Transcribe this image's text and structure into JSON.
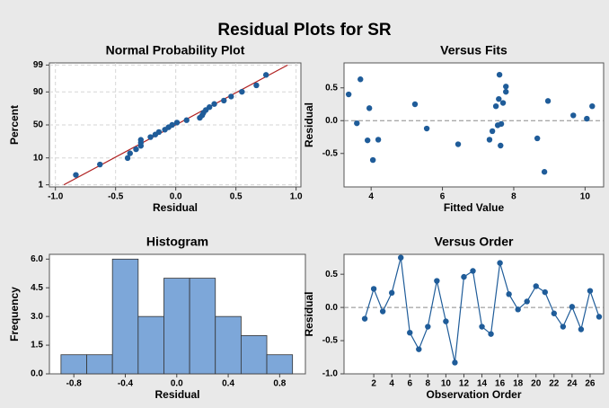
{
  "title": "Residual Plots for SR",
  "chart_data": [
    {
      "type": "probability",
      "title": "Normal Probability Plot",
      "xlabel": "Residual",
      "ylabel": "Percent",
      "x": [
        -0.83,
        -0.63,
        -0.4,
        -0.38,
        -0.33,
        -0.29,
        -0.29,
        -0.29,
        -0.21,
        -0.17,
        -0.14,
        -0.09,
        -0.06,
        -0.03,
        0.01,
        0.09,
        0.2,
        0.22,
        0.23,
        0.25,
        0.28,
        0.32,
        0.4,
        0.46,
        0.55,
        0.67,
        0.75
      ],
      "values": [
        2.6,
        6.2,
        9.9,
        13.5,
        17.2,
        20.8,
        24.5,
        28.1,
        31.8,
        35.4,
        39.1,
        42.7,
        46.4,
        50.0,
        53.6,
        57.3,
        60.9,
        64.6,
        68.2,
        71.9,
        75.5,
        79.2,
        82.8,
        86.5,
        90.1,
        93.8,
        97.4
      ],
      "color": "#1f5c99",
      "fit_line": {
        "x": [
          -0.93,
          0.93
        ],
        "values": [
          1,
          99
        ],
        "color": "#b02020"
      },
      "yscale": "probit",
      "grid": true,
      "xlim": [
        -1.05,
        1.04
      ],
      "xticks": [
        {
          "value": -1.0,
          "label": "-1.0"
        },
        -0.5,
        {
          "value": 0.0,
          "label": "0.0"
        },
        0.5,
        {
          "value": 1.0,
          "label": "1.0"
        }
      ],
      "ylim": [
        0.8,
        99.2
      ],
      "yticks": [
        1,
        10,
        50,
        90,
        99
      ]
    },
    {
      "type": "scatter",
      "title": "Versus Fits",
      "xlabel": "Fitted Value",
      "ylabel": "Residual",
      "x": [
        3.37,
        3.6,
        3.7,
        3.9,
        3.95,
        4.05,
        4.2,
        5.23,
        5.56,
        6.44,
        7.32,
        7.4,
        7.5,
        7.55,
        7.58,
        7.6,
        7.63,
        7.65,
        7.7,
        7.78,
        7.78,
        8.66,
        8.86,
        8.96,
        9.67,
        10.05,
        10.2
      ],
      "values": [
        0.4,
        -0.04,
        0.63,
        -0.3,
        0.19,
        -0.6,
        -0.29,
        0.25,
        -0.12,
        -0.36,
        -0.29,
        -0.16,
        0.22,
        -0.07,
        0.33,
        0.7,
        -0.38,
        -0.05,
        0.27,
        0.44,
        0.52,
        -0.27,
        -0.78,
        0.3,
        0.08,
        0.03,
        0.22
      ],
      "color": "#1f5c99",
      "hline": 0,
      "xlim": [
        3.24,
        10.52
      ],
      "xticks": [
        4,
        6,
        8,
        10
      ],
      "ylim": [
        -1.01,
        0.88
      ],
      "yticks": [
        -0.5,
        {
          "value": 0.0,
          "label": "0.0"
        },
        0.5
      ]
    },
    {
      "type": "histogram",
      "title": "Histogram",
      "xlabel": "Residual",
      "ylabel": "Frequency",
      "bins": [
        -0.9,
        -0.7,
        -0.5,
        -0.3,
        -0.1,
        0.1,
        0.3,
        0.5,
        0.7,
        0.9
      ],
      "values": [
        1,
        1,
        6,
        3,
        5,
        5,
        3,
        2,
        1
      ],
      "color": "#7da7d9",
      "xlim": [
        -0.99,
        1.0
      ],
      "xticks": [
        -0.8,
        -0.4,
        {
          "value": 0.0,
          "label": "0.0"
        },
        0.4,
        0.8
      ],
      "ylim": [
        0,
        6.25
      ],
      "yticks": [
        {
          "value": 0.0,
          "label": "0.0"
        },
        1.5,
        {
          "value": 3.0,
          "label": "3.0"
        },
        4.5,
        {
          "value": 6.0,
          "label": "6.0"
        }
      ]
    },
    {
      "type": "line",
      "title": "Versus Order",
      "xlabel": "Observation Order",
      "ylabel": "Residual",
      "x": [
        1,
        2,
        3,
        4,
        5,
        6,
        7,
        8,
        9,
        10,
        11,
        12,
        13,
        14,
        15,
        16,
        17,
        18,
        19,
        20,
        21,
        22,
        23,
        24,
        25,
        26,
        27
      ],
      "values": [
        -0.17,
        0.28,
        -0.06,
        0.22,
        0.75,
        -0.38,
        -0.63,
        -0.29,
        0.4,
        -0.21,
        -0.83,
        0.46,
        0.55,
        -0.29,
        -0.4,
        0.67,
        0.2,
        -0.03,
        0.09,
        0.32,
        0.23,
        -0.09,
        -0.29,
        0.01,
        -0.33,
        0.25,
        -0.14
      ],
      "color": "#1f5c99",
      "hline": 0,
      "xlim": [
        -1.3,
        27.5
      ],
      "xticks": [
        2,
        4,
        6,
        8,
        10,
        12,
        14,
        16,
        18,
        20,
        22,
        24,
        26
      ],
      "ylim": [
        -1.0,
        0.8
      ],
      "yticks": [
        {
          "value": -1.0,
          "label": "-1.0"
        },
        -0.5,
        {
          "value": 0.0,
          "label": "0.0"
        },
        0.5
      ]
    }
  ]
}
